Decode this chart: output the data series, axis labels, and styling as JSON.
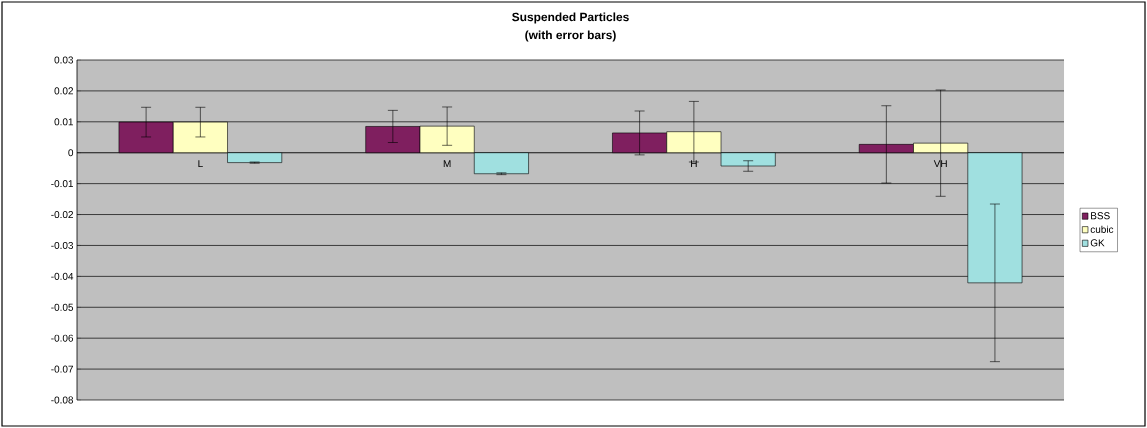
{
  "chart_data": {
    "type": "bar",
    "title": "Suspended Particles",
    "subtitle": "(with error bars)",
    "categories": [
      "L",
      "M",
      "H",
      "VH"
    ],
    "series": [
      {
        "name": "BSS",
        "color": "#7f1f5f",
        "values": [
          0.0099,
          0.0085,
          0.0064,
          0.0027
        ],
        "errors": [
          0.0048,
          0.0052,
          0.0071,
          0.0125
        ]
      },
      {
        "name": "cubic",
        "color": "#ffffc0",
        "values": [
          0.0099,
          0.0086,
          0.0068,
          0.0031
        ],
        "errors": [
          0.0048,
          0.0062,
          0.0098,
          0.0172
        ]
      },
      {
        "name": "GK",
        "color": "#a0e0e0",
        "values": [
          -0.0032,
          -0.0068,
          -0.0043,
          -0.0421
        ],
        "errors": [
          0.0002,
          0.0003,
          0.0017,
          0.0255
        ]
      }
    ],
    "ylim": [
      -0.08,
      0.03
    ],
    "yticks": [
      0.03,
      0.02,
      0.01,
      0,
      -0.01,
      -0.02,
      -0.03,
      -0.04,
      -0.05,
      -0.06,
      -0.07,
      -0.08
    ],
    "grid": "y",
    "legend": "right"
  }
}
